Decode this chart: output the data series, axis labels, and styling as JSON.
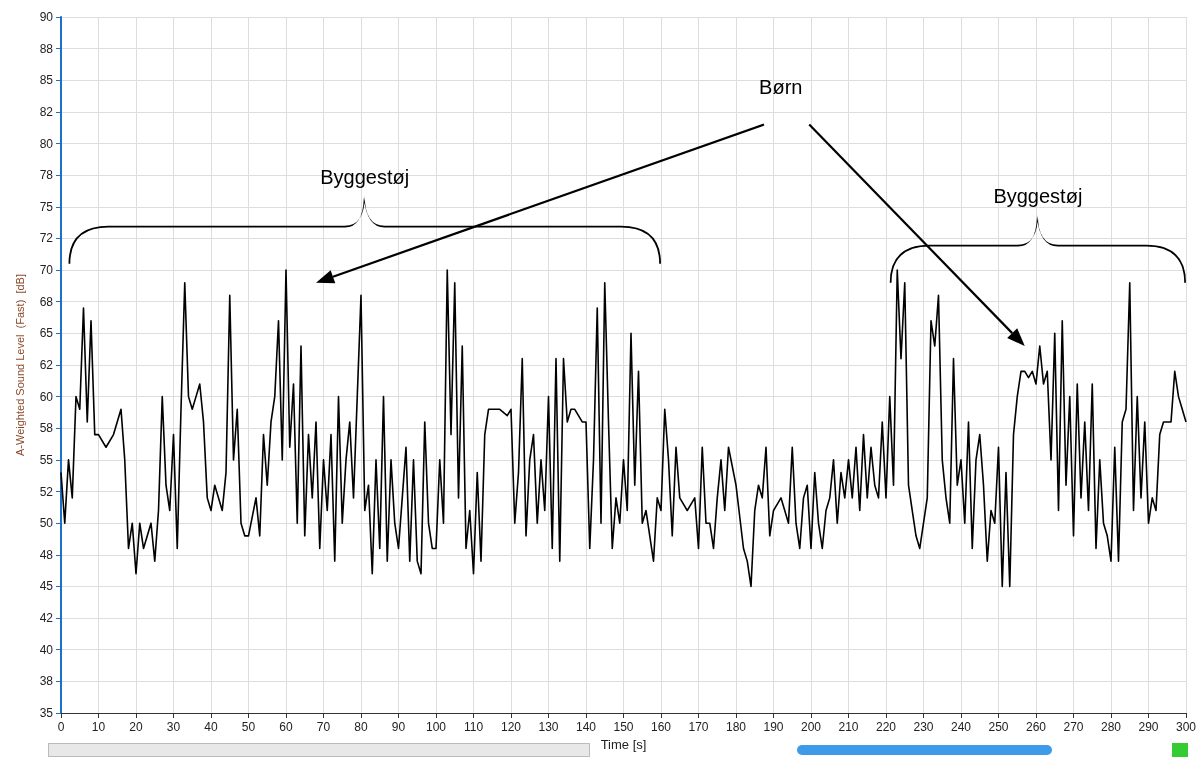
{
  "chart_data": {
    "type": "line",
    "xlabel": "Time [s]",
    "ylabel": "A-Weighted Sound Level  (Fast)  [dB]",
    "annotations": [
      "Byggestøj",
      "Byggestøj",
      "Børn"
    ],
    "xlim": [
      0,
      300
    ],
    "xticks": [
      0,
      10,
      20,
      30,
      40,
      50,
      60,
      70,
      80,
      90,
      100,
      110,
      120,
      130,
      140,
      150,
      160,
      170,
      180,
      190,
      200,
      210,
      220,
      230,
      240,
      250,
      260,
      270,
      280,
      290,
      300
    ],
    "ylim": [
      35,
      90
    ],
    "yticks": [
      35,
      {
        "value": 37.5,
        "label": "38"
      },
      40,
      {
        "value": 42.5,
        "label": "42"
      },
      45,
      {
        "value": 47.5,
        "label": "48"
      },
      50,
      {
        "value": 52.5,
        "label": "52"
      },
      55,
      {
        "value": 57.5,
        "label": "58"
      },
      60,
      {
        "value": 62.5,
        "label": "62"
      },
      65,
      {
        "value": 67.5,
        "label": "68"
      },
      70,
      {
        "value": 72.5,
        "label": "72"
      },
      75,
      {
        "value": 77.5,
        "label": "78"
      },
      80,
      {
        "value": 82.5,
        "label": "82"
      },
      85,
      {
        "value": 87.5,
        "label": "88"
      },
      90
    ],
    "grid": true,
    "marker": "none",
    "series": [
      {
        "color": "#000000",
        "x": [
          0,
          1,
          2,
          3,
          4,
          5,
          6,
          7,
          8,
          9,
          10,
          12,
          14,
          16,
          17,
          18,
          19,
          20,
          21,
          22,
          24,
          25,
          26,
          27,
          28,
          29,
          30,
          31,
          32,
          33,
          34,
          35,
          36,
          37,
          38,
          39,
          40,
          41,
          43,
          44,
          45,
          46,
          47,
          48,
          49,
          50,
          52,
          53,
          54,
          55,
          56,
          57,
          58,
          59,
          60,
          61,
          62,
          63,
          64,
          65,
          66,
          67,
          68,
          69,
          70,
          71,
          72,
          73,
          74,
          75,
          76,
          77,
          78,
          79,
          80,
          81,
          82,
          83,
          84,
          85,
          86,
          87,
          88,
          89,
          90,
          91,
          92,
          93,
          94,
          95,
          96,
          97,
          98,
          99,
          100,
          101,
          102,
          103,
          104,
          105,
          106,
          107,
          108,
          109,
          110,
          111,
          112,
          113,
          114,
          115,
          117,
          119,
          120,
          121,
          122,
          123,
          124,
          125,
          126,
          127,
          128,
          129,
          130,
          131,
          132,
          133,
          134,
          135,
          136,
          137,
          139,
          140,
          141,
          142,
          143,
          144,
          145,
          146,
          147,
          148,
          149,
          150,
          151,
          152,
          153,
          154,
          155,
          156,
          157,
          158,
          159,
          160,
          161,
          162,
          163,
          164,
          165,
          167,
          169,
          170,
          171,
          172,
          173,
          174,
          175,
          176,
          177,
          178,
          180,
          182,
          183,
          184,
          185,
          186,
          187,
          188,
          189,
          190,
          192,
          194,
          195,
          196,
          197,
          198,
          199,
          200,
          201,
          202,
          203,
          204,
          205,
          206,
          207,
          208,
          209,
          210,
          211,
          212,
          213,
          214,
          215,
          216,
          217,
          218,
          219,
          220,
          221,
          222,
          223,
          224,
          225,
          226,
          227,
          228,
          229,
          230,
          231,
          232,
          233,
          234,
          235,
          236,
          237,
          238,
          239,
          240,
          241,
          242,
          243,
          244,
          245,
          246,
          247,
          248,
          249,
          250,
          251,
          252,
          253,
          254,
          255,
          256,
          257,
          258,
          259,
          260,
          261,
          262,
          263,
          264,
          265,
          266,
          267,
          268,
          269,
          270,
          271,
          272,
          273,
          274,
          275,
          276,
          277,
          278,
          279,
          280,
          281,
          282,
          283,
          284,
          285,
          286,
          287,
          288,
          289,
          290,
          291,
          292,
          293,
          294,
          296,
          297,
          298,
          299,
          300
        ],
        "values": [
          54,
          50,
          55,
          52,
          60,
          59,
          67,
          58,
          66,
          57,
          57,
          56,
          57,
          59,
          55,
          48,
          50,
          46,
          50,
          48,
          50,
          47,
          51,
          60,
          53,
          51,
          57,
          48,
          59,
          69,
          60,
          59,
          60,
          61,
          58,
          52,
          51,
          53,
          51,
          54,
          68,
          55,
          59,
          50,
          49,
          49,
          52,
          49,
          57,
          53,
          58,
          60,
          66,
          55,
          70,
          56,
          61,
          50,
          64,
          49,
          57,
          52,
          58,
          48,
          55,
          51,
          57,
          47,
          60,
          50,
          55,
          58,
          52,
          60,
          68,
          51,
          53,
          46,
          55,
          48,
          60,
          47,
          55,
          50,
          48,
          52,
          56,
          47,
          55,
          47,
          46,
          58,
          50,
          48,
          48,
          55,
          50,
          70,
          57,
          69,
          52,
          64,
          48,
          51,
          46,
          54,
          47,
          57,
          59,
          59,
          59,
          58.5,
          59,
          50,
          54,
          63,
          49,
          55,
          57,
          50,
          55,
          51,
          60,
          48,
          63,
          47,
          63,
          58,
          59,
          59,
          58,
          58,
          48,
          55,
          67,
          50,
          69,
          58,
          48,
          52,
          50,
          55,
          51,
          65,
          53,
          62,
          50,
          51,
          49,
          47,
          52,
          51,
          59,
          55,
          49,
          56,
          52,
          51,
          52,
          48,
          56,
          50,
          50,
          48,
          52,
          55,
          51,
          56,
          53,
          48,
          47,
          45,
          51,
          53,
          52,
          56,
          49,
          51,
          52,
          50,
          56,
          50,
          48,
          52,
          53,
          48,
          54,
          50,
          48,
          51,
          52,
          55,
          50,
          54,
          52,
          55,
          52,
          56,
          51,
          57,
          52,
          56,
          53,
          52,
          58,
          52,
          60,
          53,
          70,
          63,
          69,
          53,
          51,
          49,
          48,
          50,
          52,
          66,
          64,
          68,
          55,
          52,
          50,
          63,
          53,
          55,
          50,
          58,
          48,
          55,
          57,
          53,
          47,
          51,
          50,
          56,
          45,
          54,
          45,
          57,
          60,
          62,
          62,
          61.5,
          62,
          61,
          64,
          61,
          62,
          55,
          65,
          51,
          66,
          53,
          60,
          49,
          61,
          52,
          58,
          51,
          61,
          48,
          55,
          50,
          49,
          47,
          56,
          47,
          58,
          59,
          69,
          51,
          60,
          52,
          58,
          50,
          52,
          51,
          57,
          58,
          58,
          62,
          60,
          59,
          58
        ]
      }
    ]
  }
}
